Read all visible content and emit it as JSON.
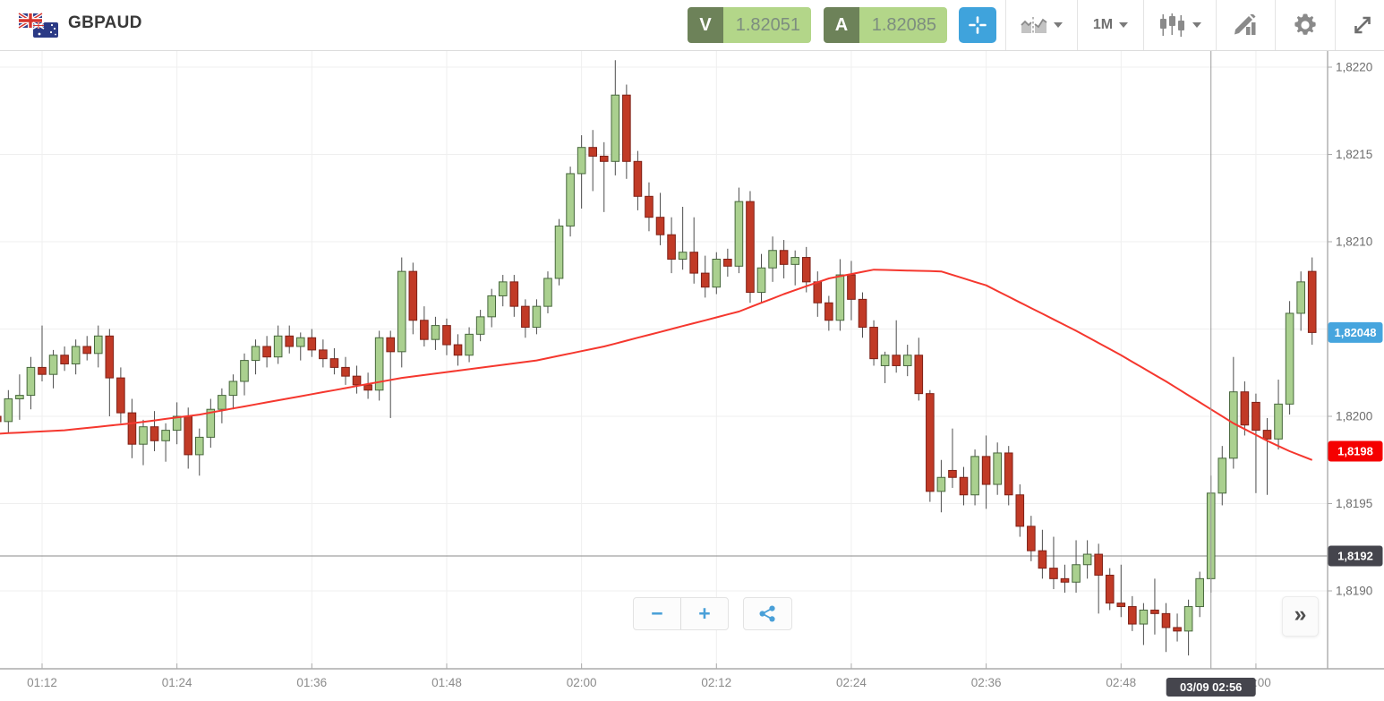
{
  "header": {
    "symbol": "GBPAUD",
    "bid": {
      "label": "V",
      "value": "1.82051"
    },
    "ask": {
      "label": "A",
      "value": "1.82085"
    },
    "interval": "1M",
    "toolbar": {
      "chart_style": "chart-style-selector",
      "interval_selector": "interval-selector",
      "chart_type": "candlestick-type-selector",
      "draw": "drawing-tools",
      "settings": "settings",
      "fullscreen": "fullscreen"
    }
  },
  "controls": {
    "zoom_out": "−",
    "zoom_in": "+",
    "collapse": "»"
  },
  "colors": {
    "bid_ask_dark_green": "#6d8259",
    "bid_ask_light_green": "#b3d689",
    "crosshair_button_blue": "#3fa3dc",
    "candle_up_fill": "#aad08f",
    "candle_up_stroke": "#47673c",
    "candle_down_fill": "#c13a26",
    "candle_down_stroke": "#7e2117",
    "wick": "#4d4d4d",
    "ma_line": "#f5372e",
    "last_price_badge": "#46a5de",
    "ma_badge": "#f50000",
    "level_badge": "#45454d",
    "grid": "#efefef",
    "axis_line": "#ababab",
    "axis_text": "#6e6e6e",
    "time_text": "#8b8b8b",
    "crosshair_line": "#9c9c9c",
    "level_line": "#8a8a8a"
  },
  "chart_data": {
    "type": "candlestick",
    "symbol": "GBPAUD",
    "interval": "1M",
    "start_time": "01:08",
    "candles": [
      [
        1.82,
        1.82008,
        1.81988,
        1.81997
      ],
      [
        1.81997,
        1.82015,
        1.8199,
        1.8201
      ],
      [
        1.8201,
        1.82024,
        1.81998,
        1.82012
      ],
      [
        1.82012,
        1.82034,
        1.82004,
        1.82028
      ],
      [
        1.82028,
        1.82052,
        1.8202,
        1.82024
      ],
      [
        1.82024,
        1.82038,
        1.82016,
        1.82035
      ],
      [
        1.82035,
        1.8204,
        1.82026,
        1.8203
      ],
      [
        1.8203,
        1.82044,
        1.82024,
        1.8204
      ],
      [
        1.8204,
        1.82046,
        1.82032,
        1.82036
      ],
      [
        1.82036,
        1.82052,
        1.82028,
        1.82046
      ],
      [
        1.82046,
        1.8205,
        1.82,
        1.82022
      ],
      [
        1.82022,
        1.82028,
        1.81996,
        1.82002
      ],
      [
        1.82002,
        1.8201,
        1.81976,
        1.81984
      ],
      [
        1.81984,
        1.81998,
        1.81972,
        1.81994
      ],
      [
        1.81994,
        1.82003,
        1.8198,
        1.81986
      ],
      [
        1.81986,
        1.81996,
        1.81974,
        1.81992
      ],
      [
        1.81992,
        1.82008,
        1.81984,
        1.82
      ],
      [
        1.82,
        1.82005,
        1.8197,
        1.81978
      ],
      [
        1.81978,
        1.81993,
        1.81966,
        1.81988
      ],
      [
        1.81988,
        1.8201,
        1.81982,
        1.82004
      ],
      [
        1.82004,
        1.82016,
        1.81996,
        1.82012
      ],
      [
        1.82012,
        1.82024,
        1.82004,
        1.8202
      ],
      [
        1.8202,
        1.82036,
        1.82012,
        1.82032
      ],
      [
        1.82032,
        1.82044,
        1.82024,
        1.8204
      ],
      [
        1.8204,
        1.82046,
        1.82028,
        1.82034
      ],
      [
        1.82034,
        1.82052,
        1.8203,
        1.82046
      ],
      [
        1.82046,
        1.82052,
        1.82036,
        1.8204
      ],
      [
        1.8204,
        1.82048,
        1.82032,
        1.82045
      ],
      [
        1.82045,
        1.8205,
        1.82034,
        1.82038
      ],
      [
        1.82038,
        1.82044,
        1.82028,
        1.82033
      ],
      [
        1.82033,
        1.82039,
        1.82024,
        1.82028
      ],
      [
        1.82028,
        1.82034,
        1.82018,
        1.82023
      ],
      [
        1.82023,
        1.82029,
        1.82013,
        1.82018
      ],
      [
        1.82018,
        1.82025,
        1.8201,
        1.82015
      ],
      [
        1.82015,
        1.82049,
        1.82009,
        1.82045
      ],
      [
        1.82045,
        1.82049,
        1.81999,
        1.82037
      ],
      [
        1.82037,
        1.82091,
        1.82028,
        1.82083
      ],
      [
        1.82083,
        1.82088,
        1.82047,
        1.82055
      ],
      [
        1.82055,
        1.82063,
        1.8204,
        1.82044
      ],
      [
        1.82044,
        1.82057,
        1.82038,
        1.82052
      ],
      [
        1.82052,
        1.82056,
        1.82035,
        1.82041
      ],
      [
        1.82041,
        1.82047,
        1.82029,
        1.82035
      ],
      [
        1.82035,
        1.82051,
        1.82031,
        1.82047
      ],
      [
        1.82047,
        1.82061,
        1.82043,
        1.82057
      ],
      [
        1.82057,
        1.82073,
        1.82051,
        1.82069
      ],
      [
        1.82069,
        1.82081,
        1.82063,
        1.82077
      ],
      [
        1.82077,
        1.82081,
        1.82057,
        1.82063
      ],
      [
        1.82063,
        1.82067,
        1.82045,
        1.82051
      ],
      [
        1.82051,
        1.82067,
        1.82047,
        1.82063
      ],
      [
        1.82063,
        1.82083,
        1.82059,
        1.82079
      ],
      [
        1.82079,
        1.82113,
        1.82075,
        1.82109
      ],
      [
        1.82109,
        1.82143,
        1.82103,
        1.82139
      ],
      [
        1.82139,
        1.82161,
        1.82119,
        1.82154
      ],
      [
        1.82154,
        1.82164,
        1.82129,
        1.82149
      ],
      [
        1.82149,
        1.82157,
        1.82117,
        1.82146
      ],
      [
        1.82146,
        1.82204,
        1.82138,
        1.82184
      ],
      [
        1.82184,
        1.8219,
        1.82136,
        1.82146
      ],
      [
        1.82146,
        1.82152,
        1.82118,
        1.82126
      ],
      [
        1.82126,
        1.82134,
        1.82106,
        1.82114
      ],
      [
        1.82114,
        1.82128,
        1.82098,
        1.82104
      ],
      [
        1.82104,
        1.82114,
        1.82082,
        1.8209
      ],
      [
        1.8209,
        1.8212,
        1.82084,
        1.82094
      ],
      [
        1.82094,
        1.82114,
        1.82076,
        1.82082
      ],
      [
        1.82082,
        1.82092,
        1.82068,
        1.82074
      ],
      [
        1.82074,
        1.82094,
        1.8207,
        1.8209
      ],
      [
        1.8209,
        1.82096,
        1.8208,
        1.82086
      ],
      [
        1.82086,
        1.82131,
        1.82082,
        1.82123
      ],
      [
        1.82123,
        1.82129,
        1.82065,
        1.82071
      ],
      [
        1.82071,
        1.82093,
        1.82065,
        1.82085
      ],
      [
        1.82085,
        1.82103,
        1.82077,
        1.82095
      ],
      [
        1.82095,
        1.82101,
        1.82079,
        1.82087
      ],
      [
        1.82087,
        1.82095,
        1.82075,
        1.82091
      ],
      [
        1.82091,
        1.82097,
        1.82071,
        1.82077
      ],
      [
        1.82077,
        1.82083,
        1.82057,
        1.82065
      ],
      [
        1.82065,
        1.82069,
        1.82049,
        1.82055
      ],
      [
        1.82055,
        1.8209,
        1.82049,
        1.82081
      ],
      [
        1.82081,
        1.82089,
        1.82055,
        1.82067
      ],
      [
        1.82067,
        1.82071,
        1.82045,
        1.82051
      ],
      [
        1.82051,
        1.82055,
        1.82029,
        1.82033
      ],
      [
        1.82029,
        1.82037,
        1.82019,
        1.82035
      ],
      [
        1.82035,
        1.82055,
        1.82025,
        1.82029
      ],
      [
        1.82029,
        1.82041,
        1.82023,
        1.82035
      ],
      [
        1.82035,
        1.82045,
        1.82009,
        1.82013
      ],
      [
        1.82013,
        1.82015,
        1.81951,
        1.81957
      ],
      [
        1.81957,
        1.81975,
        1.81945,
        1.81965
      ],
      [
        1.81969,
        1.81993,
        1.81959,
        1.81965
      ],
      [
        1.81965,
        1.81971,
        1.81949,
        1.81955
      ],
      [
        1.81955,
        1.81981,
        1.81949,
        1.81977
      ],
      [
        1.81977,
        1.81989,
        1.81947,
        1.81961
      ],
      [
        1.81961,
        1.81985,
        1.81955,
        1.81979
      ],
      [
        1.81979,
        1.81983,
        1.81949,
        1.81955
      ],
      [
        1.81955,
        1.81961,
        1.81931,
        1.81937
      ],
      [
        1.81937,
        1.81943,
        1.81917,
        1.81923
      ],
      [
        1.81923,
        1.81935,
        1.81907,
        1.81913
      ],
      [
        1.81913,
        1.81931,
        1.81901,
        1.81907
      ],
      [
        1.81907,
        1.81915,
        1.81899,
        1.81905
      ],
      [
        1.81905,
        1.81929,
        1.81899,
        1.81915
      ],
      [
        1.81915,
        1.81929,
        1.81907,
        1.81921
      ],
      [
        1.81921,
        1.81927,
        1.81887,
        1.81909
      ],
      [
        1.81909,
        1.81913,
        1.81889,
        1.81893
      ],
      [
        1.81893,
        1.81915,
        1.81885,
        1.81891
      ],
      [
        1.81891,
        1.81897,
        1.81877,
        1.81881
      ],
      [
        1.81881,
        1.81893,
        1.81869,
        1.81889
      ],
      [
        1.81889,
        1.81907,
        1.81875,
        1.81887
      ],
      [
        1.81887,
        1.81893,
        1.81865,
        1.81879
      ],
      [
        1.81879,
        1.81887,
        1.81871,
        1.81877
      ],
      [
        1.81877,
        1.81895,
        1.81863,
        1.81891
      ],
      [
        1.81891,
        1.81911,
        1.81885,
        1.81907
      ],
      [
        1.81907,
        1.81966,
        1.81899,
        1.81956
      ],
      [
        1.81956,
        1.81983,
        1.81949,
        1.81976
      ],
      [
        1.81976,
        1.82034,
        1.8197,
        1.82014
      ],
      [
        1.82014,
        1.8202,
        1.81989,
        1.81995
      ],
      [
        1.82008,
        1.82013,
        1.81956,
        1.81992
      ],
      [
        1.81992,
        1.81999,
        1.81955,
        1.81987
      ],
      [
        1.81987,
        1.82021,
        1.81981,
        1.82007
      ],
      [
        1.82007,
        1.82066,
        1.82001,
        1.82059
      ],
      [
        1.82059,
        1.82083,
        1.82049,
        1.82077
      ],
      [
        1.82083,
        1.82091,
        1.82041,
        1.82048
      ]
    ],
    "ma": {
      "name": "moving-average",
      "anchors": [
        [
          0,
          1.8199
        ],
        [
          6,
          1.81992
        ],
        [
          12,
          1.81996
        ],
        [
          18,
          1.82001
        ],
        [
          24,
          1.82008
        ],
        [
          30,
          1.82015
        ],
        [
          36,
          1.82022
        ],
        [
          42,
          1.82027
        ],
        [
          48,
          1.82032
        ],
        [
          54,
          1.8204
        ],
        [
          60,
          1.8205
        ],
        [
          66,
          1.8206
        ],
        [
          70,
          1.8207
        ],
        [
          74,
          1.82079
        ],
        [
          78,
          1.82084
        ],
        [
          84,
          1.82083
        ],
        [
          88,
          1.82075
        ],
        [
          92,
          1.82062
        ],
        [
          96,
          1.82049
        ],
        [
          100,
          1.82035
        ],
        [
          104,
          1.8202
        ],
        [
          107,
          1.82008
        ],
        [
          110,
          1.81996
        ],
        [
          113,
          1.81986
        ],
        [
          115,
          1.8198
        ],
        [
          117,
          1.81975
        ]
      ]
    },
    "price_axis": {
      "ticks": [
        {
          "value": 1.822,
          "label": "1,8220"
        },
        {
          "value": 1.8215,
          "label": "1,8215"
        },
        {
          "value": 1.821,
          "label": "1,8210"
        },
        {
          "value": 1.8205,
          "label": "1,8205"
        },
        {
          "value": 1.82,
          "label": "1,8200"
        },
        {
          "value": 1.8195,
          "label": "1,8195"
        },
        {
          "value": 1.819,
          "label": "1,8190"
        }
      ]
    },
    "time_axis": {
      "ticks": [
        {
          "label": "01:12",
          "index": 4
        },
        {
          "label": "01:24",
          "index": 16
        },
        {
          "label": "01:36",
          "index": 28
        },
        {
          "label": "01:48",
          "index": 40
        },
        {
          "label": "02:00",
          "index": 52
        },
        {
          "label": "02:12",
          "index": 64
        },
        {
          "label": "02:24",
          "index": 76
        },
        {
          "label": "02:36",
          "index": 88
        },
        {
          "label": "02:48",
          "index": 100
        },
        {
          "label": "03:00",
          "index": 112
        }
      ]
    },
    "markers": {
      "last_price": {
        "value": 1.82048,
        "label": "1,82048"
      },
      "ma_price": {
        "value": 1.8198,
        "label": "1,8198"
      },
      "level": {
        "value": 1.8192,
        "label": "1,8192"
      }
    },
    "crosshair": {
      "index": 108,
      "time_label": "03/09 02:56"
    }
  }
}
